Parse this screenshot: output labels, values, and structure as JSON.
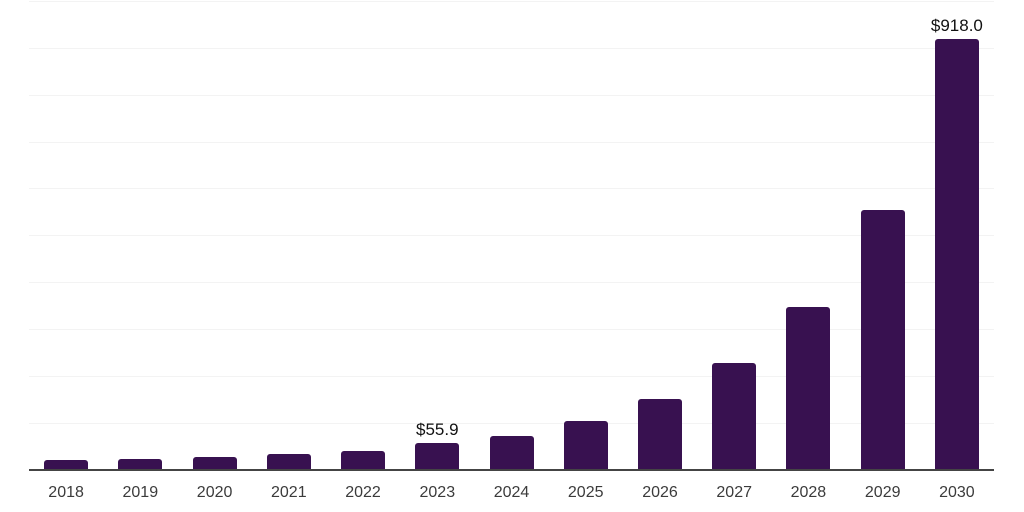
{
  "chart_data": {
    "type": "bar",
    "title": "",
    "xlabel": "",
    "ylabel": "",
    "categories": [
      "2018",
      "2019",
      "2020",
      "2021",
      "2022",
      "2023",
      "2024",
      "2025",
      "2026",
      "2027",
      "2028",
      "2029",
      "2030"
    ],
    "values": [
      19,
      22,
      26,
      33,
      40,
      55.9,
      72,
      104,
      150,
      227,
      347,
      553,
      918
    ],
    "data_labels": [
      "",
      "",
      "",
      "",
      "",
      "$55.9",
      "",
      "",
      "",
      "",
      "",
      "",
      "$918.0"
    ],
    "ylim": [
      0,
      1000
    ],
    "grid_step": 100,
    "grid": "horizontal",
    "legend_position": "none",
    "y_tick_labels_shown": false
  },
  "colors": {
    "bar": "#381150",
    "gridline": "#f3f3f3",
    "axis": "#444444",
    "value_label": "#111111",
    "tick_label": "#3b3b3b",
    "background": "#ffffff"
  }
}
